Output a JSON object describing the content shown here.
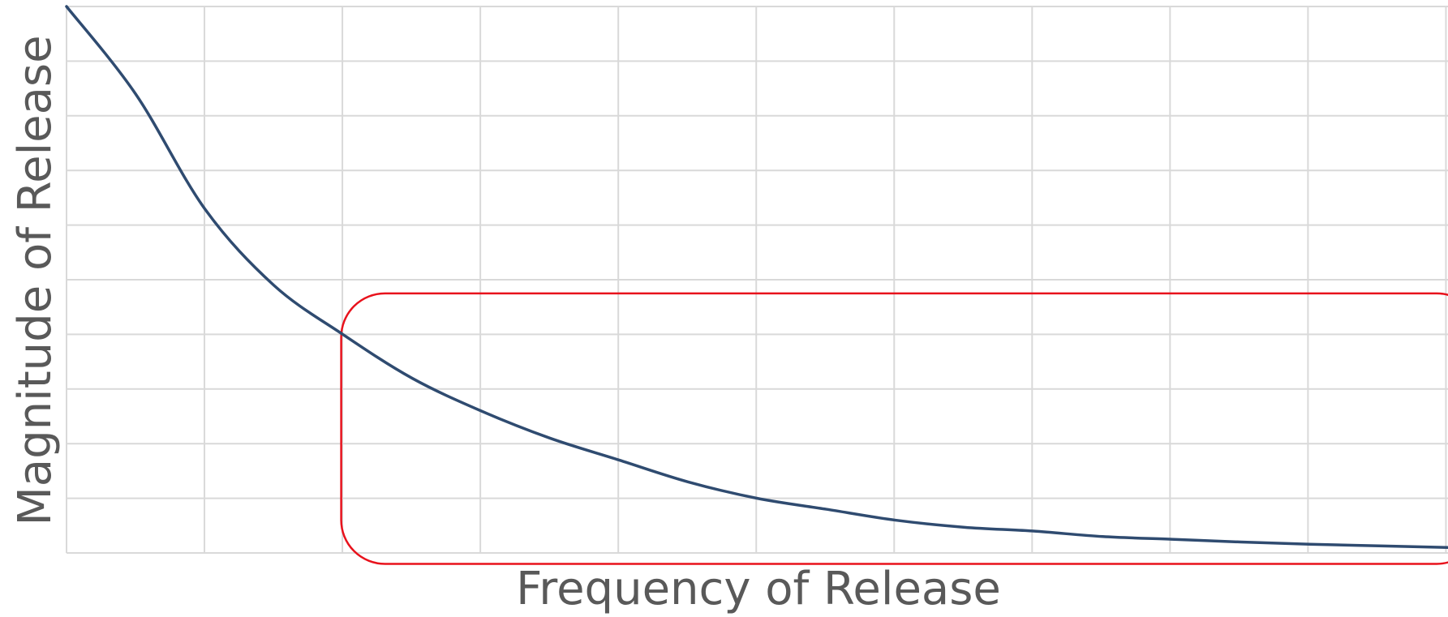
{
  "chart_data": {
    "type": "line",
    "title": "",
    "xlabel": "Frequency of Release",
    "ylabel": "Magnitude of Release",
    "xlim": [
      0,
      10
    ],
    "ylim": [
      0,
      10
    ],
    "grid": true,
    "tick_labels_shown": false,
    "series": [
      {
        "x": [
          0,
          0.5,
          1,
          1.5,
          2,
          2.5,
          3,
          3.5,
          4,
          4.5,
          5,
          5.5,
          6,
          6.5,
          7,
          7.5,
          8,
          8.5,
          9,
          9.5,
          10
        ],
        "y": [
          10,
          8.4,
          6.3,
          4.9,
          4.0,
          3.2,
          2.6,
          2.1,
          1.7,
          1.3,
          1.0,
          0.8,
          0.6,
          0.47,
          0.4,
          0.3,
          0.25,
          0.2,
          0.16,
          0.13,
          0.1
        ]
      }
    ],
    "highlight_region": {
      "x": [
        2,
        10
      ],
      "y": [
        -0.2,
        4.75
      ],
      "shape": "rounded-rectangle"
    },
    "colors": {
      "line": "#2f4b70",
      "grid": "#d9d9d9",
      "highlight": "#e8121c",
      "axis_text": "#595959"
    }
  }
}
